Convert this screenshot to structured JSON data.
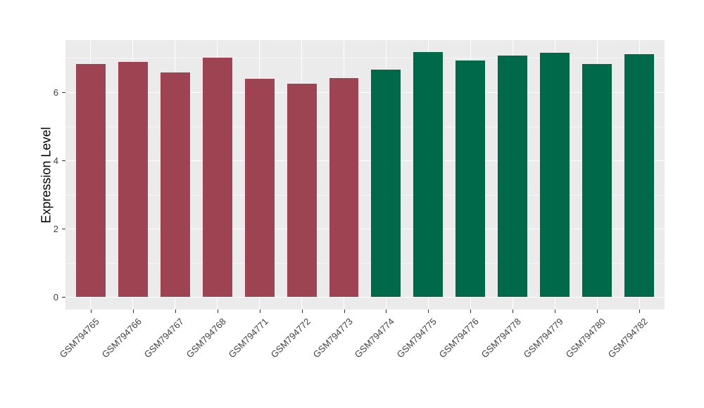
{
  "chart_data": {
    "type": "bar",
    "title": "",
    "xlabel": "",
    "ylabel": "Expression Level",
    "categories": [
      "GSM794765",
      "GSM794766",
      "GSM794767",
      "GSM794768",
      "GSM794771",
      "GSM794772",
      "GSM794773",
      "GSM794774",
      "GSM794775",
      "GSM794776",
      "GSM794778",
      "GSM794779",
      "GSM794780",
      "GSM794782"
    ],
    "values": [
      6.82,
      6.88,
      6.58,
      7.02,
      6.4,
      6.25,
      6.42,
      6.67,
      7.17,
      6.93,
      7.07,
      7.15,
      6.82,
      7.12
    ],
    "bar_groups": [
      "group1",
      "group1",
      "group1",
      "group1",
      "group1",
      "group1",
      "group1",
      "group2",
      "group2",
      "group2",
      "group2",
      "group2",
      "group2",
      "group2"
    ],
    "group_colors": {
      "group1": "#9E4352",
      "group2": "#00694A"
    },
    "yticks": [
      0,
      2,
      4,
      6
    ],
    "minor_yticks": [
      1,
      3,
      5,
      7
    ],
    "ylim": [
      -0.365,
      7.525
    ],
    "bar_width_fraction": 0.7,
    "x_tick_rotation_deg": 45,
    "legend": "none",
    "grid": "on",
    "panel_bg": "#EBEBEB",
    "grid_color": "#FFFFFF",
    "tick_mark_color": "#333333",
    "tick_label_color": "#404040",
    "axis_title_color": "#000000",
    "figure_bg": "#FFFFFF"
  }
}
